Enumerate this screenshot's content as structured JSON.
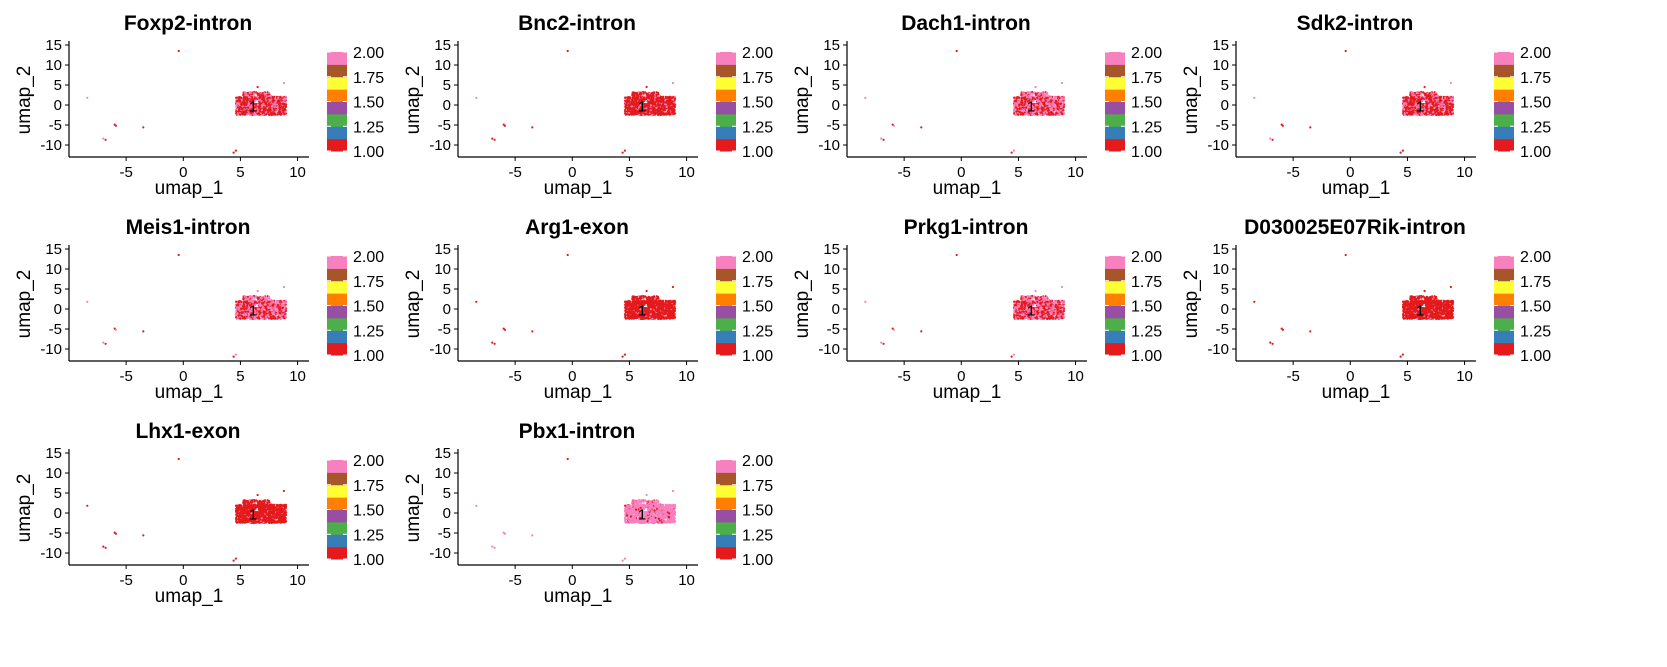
{
  "figure": {
    "x_label": "umap_1",
    "y_label": "umap_2",
    "x_ticks": [
      -5,
      0,
      5,
      10
    ],
    "y_ticks": [
      15,
      10,
      5,
      0,
      -5,
      -10
    ],
    "x_range": [
      -10,
      11
    ],
    "y_range": [
      -13,
      15.5
    ],
    "legend_ticks": [
      2.0,
      1.75,
      1.5,
      1.25,
      1.0
    ],
    "legend_tick_labels": [
      "2.00",
      "1.75",
      "1.50",
      "1.25",
      "1.00"
    ],
    "legend_range": [
      1.0,
      2.0
    ],
    "legend_colors": [
      "#e41a1c",
      "#377eb8",
      "#4daf4a",
      "#984ea3",
      "#ff7f00",
      "#ffff33",
      "#a65628",
      "#f781bf"
    ],
    "low_color": "#e41a1c",
    "high_color": "#f781bf",
    "cluster_label": "1",
    "cluster_center": [
      6.1,
      -0.4
    ]
  },
  "chart_data": [
    {
      "type": "scatter",
      "title": "Foxp2-intron",
      "high_fraction": 0.35
    },
    {
      "type": "scatter",
      "title": "Bnc2-intron",
      "high_fraction": 0.12
    },
    {
      "type": "scatter",
      "title": "Dach1-intron",
      "high_fraction": 0.55
    },
    {
      "type": "scatter",
      "title": "Sdk2-intron",
      "high_fraction": 0.35
    },
    {
      "type": "scatter",
      "title": "Meis1-intron",
      "high_fraction": 0.55
    },
    {
      "type": "scatter",
      "title": "Arg1-exon",
      "high_fraction": 0.03
    },
    {
      "type": "scatter",
      "title": "Prkg1-intron",
      "high_fraction": 0.5
    },
    {
      "type": "scatter",
      "title": "D030025E07Rik-intron",
      "high_fraction": 0.02
    },
    {
      "type": "scatter",
      "title": "Lhx1-exon",
      "high_fraction": 0.02
    },
    {
      "type": "scatter",
      "title": "Pbx1-intron",
      "high_fraction": 0.88
    }
  ]
}
